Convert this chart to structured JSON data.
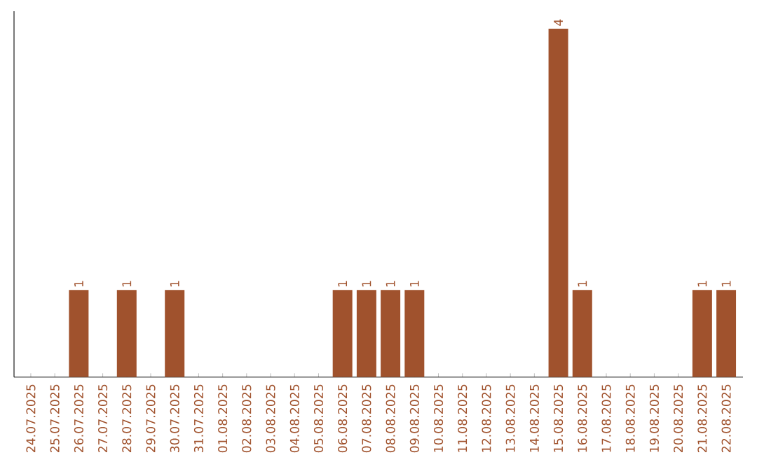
{
  "chart_data": {
    "type": "bar",
    "categories": [
      "24.07.2025",
      "25.07.2025",
      "26.07.2025",
      "27.07.2025",
      "28.07.2025",
      "29.07.2025",
      "30.07.2025",
      "31.07.2025",
      "01.08.2025",
      "02.08.2025",
      "03.08.2025",
      "04.08.2025",
      "05.08.2025",
      "06.08.2025",
      "07.08.2025",
      "08.08.2025",
      "09.08.2025",
      "10.08.2025",
      "11.08.2025",
      "12.08.2025",
      "13.08.2025",
      "14.08.2025",
      "15.08.2025",
      "16.08.2025",
      "17.08.2025",
      "18.08.2025",
      "19.08.2025",
      "20.08.2025",
      "21.08.2025",
      "22.08.2025"
    ],
    "values": [
      0,
      0,
      1,
      0,
      1,
      0,
      1,
      0,
      0,
      0,
      0,
      0,
      0,
      1,
      1,
      1,
      1,
      0,
      0,
      0,
      0,
      0,
      4,
      1,
      0,
      0,
      0,
      0,
      1,
      1
    ],
    "value_labels": [
      null,
      null,
      "1",
      null,
      "1",
      null,
      "1",
      null,
      null,
      null,
      null,
      null,
      null,
      "1",
      "1",
      "1",
      "1",
      null,
      null,
      null,
      null,
      null,
      "4",
      "1",
      null,
      null,
      null,
      null,
      "1",
      "1"
    ],
    "color": "#a0522d",
    "tick_labels": "x"
  }
}
